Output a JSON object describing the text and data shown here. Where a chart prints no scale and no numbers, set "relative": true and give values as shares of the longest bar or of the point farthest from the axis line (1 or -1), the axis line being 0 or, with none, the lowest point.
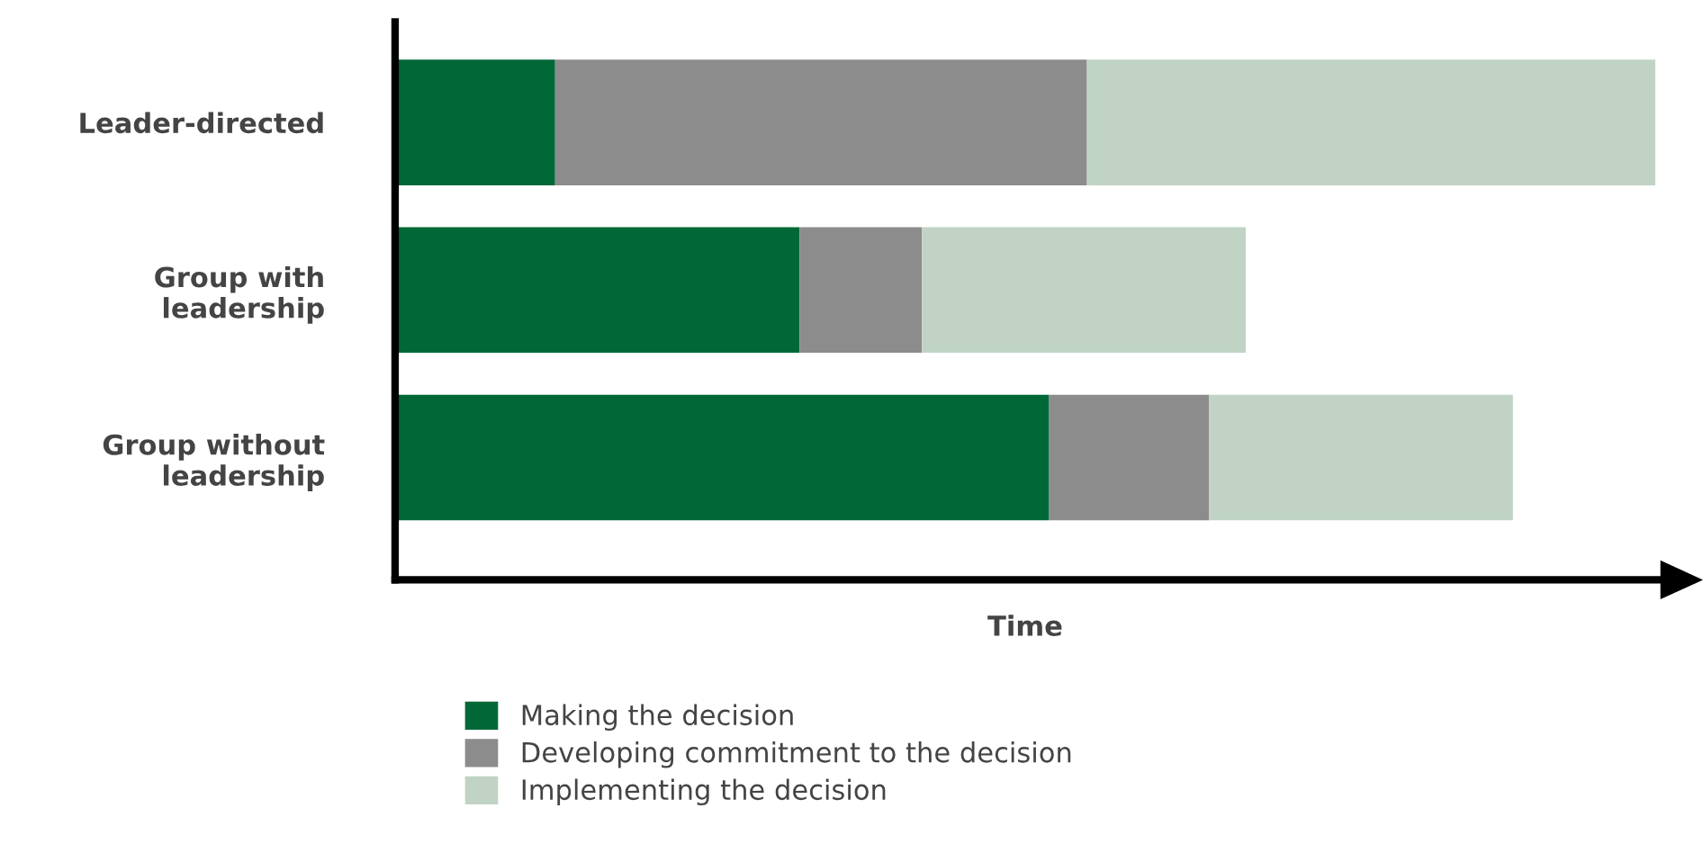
{
  "chart_data": {
    "type": "bar",
    "orientation": "horizontal",
    "stacked": true,
    "relative": true,
    "xlabel": "Time",
    "categories": [
      "Leader-directed",
      "Group with\nleadership",
      "Group without\nleadership"
    ],
    "series": [
      {
        "name": "Making the decision",
        "color": "#006837",
        "values": [
          0.127,
          0.321,
          0.519
        ]
      },
      {
        "name": "Developing commitment to the decision",
        "color": "#8c8c8c",
        "values": [
          0.422,
          0.097,
          0.127
        ]
      },
      {
        "name": "Implementing the decision",
        "color": "#c0d3c5",
        "values": [
          0.451,
          0.257,
          0.241
        ]
      }
    ],
    "legend": "bottom",
    "grid": false
  }
}
